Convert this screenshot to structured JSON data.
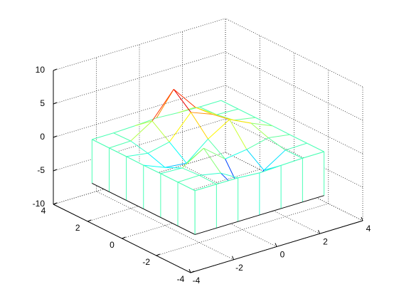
{
  "chart_data": {
    "type": "mesh",
    "colormap": "jet",
    "grid": true,
    "x": [
      -3,
      -2,
      -1,
      0,
      1,
      2,
      3
    ],
    "y": [
      -3,
      -2,
      -1,
      0,
      1,
      2,
      3
    ],
    "z": [
      [
        0,
        0,
        -0.03,
        -0.25,
        -0.11,
        0,
        0
      ],
      [
        0,
        0.05,
        -0.59,
        -4.76,
        -2.1,
        -0.06,
        0
      ],
      [
        0,
        -0.13,
        1.85,
        -0.72,
        -0.27,
        0.5,
        0
      ],
      [
        -0.03,
        -1.33,
        -1.65,
        0.98,
        2.94,
        1.41,
        0.03
      ],
      [
        0,
        -0.48,
        0.23,
        3.69,
        2.43,
        0.58,
        0
      ],
      [
        0,
        0.08,
        2.1,
        5.86,
        2.21,
        0.13,
        0
      ],
      [
        0,
        0,
        0.11,
        0.3,
        0.11,
        0,
        0
      ]
    ],
    "curtain_z": -6.55,
    "xlim": [
      -4,
      4
    ],
    "ylim": [
      -4,
      4
    ],
    "zlim": [
      -10,
      10
    ],
    "xticks": [
      -4,
      -2,
      0,
      2,
      4
    ],
    "yticks": [
      -4,
      -2,
      0,
      2,
      4
    ],
    "zticks": [
      -10,
      -5,
      0,
      5,
      10
    ]
  }
}
